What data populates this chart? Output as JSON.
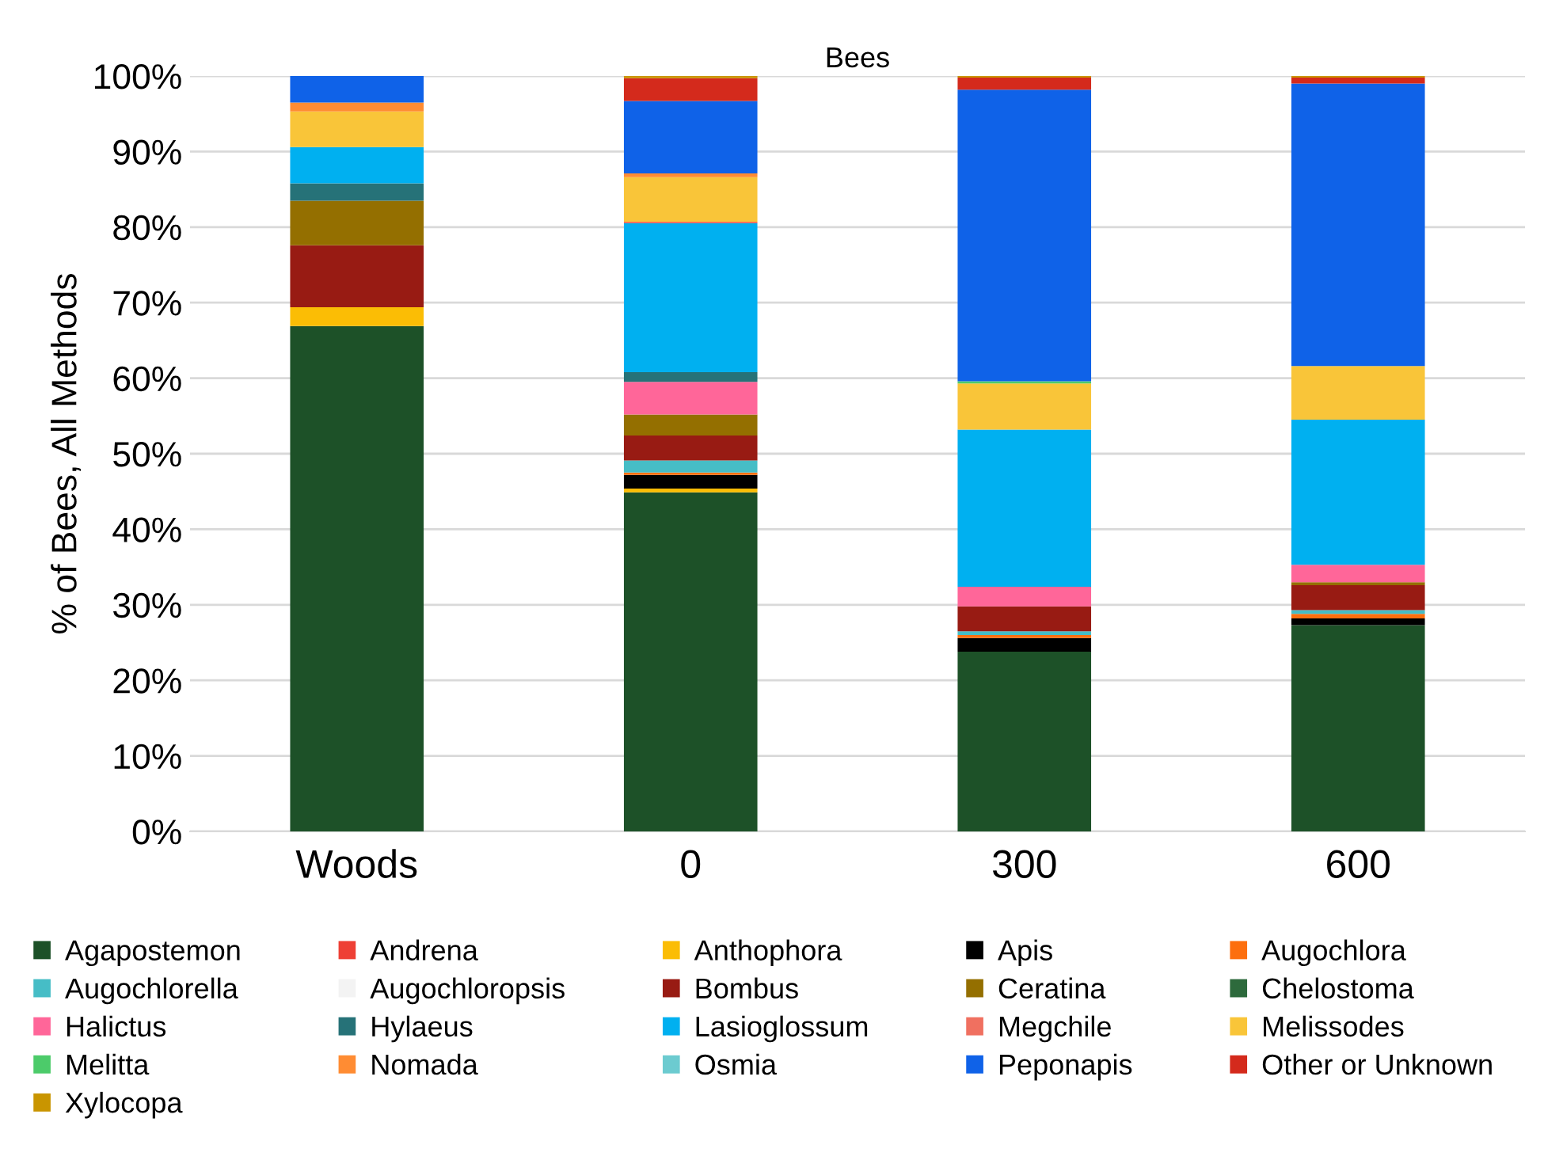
{
  "chart_data": {
    "type": "bar",
    "stacked": true,
    "title": "Bees",
    "ylabel": "% of Bees, All Methods",
    "categories": [
      "Woods",
      "0",
      "300",
      "600"
    ],
    "ylim": [
      0,
      100
    ],
    "yticks": [
      {
        "value": 0,
        "label": "0%"
      },
      {
        "value": 10,
        "label": "10%"
      },
      {
        "value": 20,
        "label": "20%"
      },
      {
        "value": 30,
        "label": "30%"
      },
      {
        "value": 40,
        "label": "40%"
      },
      {
        "value": 50,
        "label": "50%"
      },
      {
        "value": 60,
        "label": "60%"
      },
      {
        "value": 70,
        "label": "70%"
      },
      {
        "value": 80,
        "label": "80%"
      },
      {
        "value": 90,
        "label": "90%"
      },
      {
        "value": 100,
        "label": "100%"
      }
    ],
    "grid": "y",
    "legend": "bottom",
    "series": [
      {
        "name": "Agapostemon",
        "color": "#1d5128",
        "values": [
          66.9,
          44.9,
          23.8,
          27.3
        ]
      },
      {
        "name": "Andrena",
        "color": "#ee4035",
        "values": [
          0,
          0,
          0,
          0
        ]
      },
      {
        "name": "Anthophora",
        "color": "#fbbd05",
        "values": [
          2.5,
          0.5,
          0,
          0
        ]
      },
      {
        "name": "Apis",
        "color": "#000000",
        "values": [
          0,
          1.8,
          1.8,
          0.9
        ]
      },
      {
        "name": "Augochlora",
        "color": "#fd6f0e",
        "values": [
          0,
          0.3,
          0.4,
          0.6
        ]
      },
      {
        "name": "Augochlorella",
        "color": "#46bdc6",
        "values": [
          0,
          1.6,
          0.5,
          0.5
        ]
      },
      {
        "name": "Augochloropsis",
        "color": "#f3f3f3",
        "values": [
          0,
          0,
          0,
          0
        ]
      },
      {
        "name": "Bombus",
        "color": "#981b13",
        "values": [
          8.2,
          3.3,
          3.3,
          3.3
        ]
      },
      {
        "name": "Ceratina",
        "color": "#946f00",
        "values": [
          5.9,
          2.8,
          0,
          0.4
        ]
      },
      {
        "name": "Chelostoma",
        "color": "#2d6a3c",
        "values": [
          0,
          0,
          0,
          0
        ]
      },
      {
        "name": "Halictus",
        "color": "#ff6699",
        "values": [
          0,
          4.3,
          2.6,
          2.3
        ]
      },
      {
        "name": "Hylaeus",
        "color": "#267278",
        "values": [
          2.3,
          1.3,
          0,
          0
        ]
      },
      {
        "name": "Lasioglossum",
        "color": "#00b0f0",
        "values": [
          4.8,
          19.7,
          20.8,
          19.2
        ]
      },
      {
        "name": "Megchile",
        "color": "#f07060",
        "values": [
          0,
          0.2,
          0,
          0
        ]
      },
      {
        "name": "Melissodes",
        "color": "#f9c539",
        "values": [
          4.7,
          5.9,
          6.1,
          7.1
        ]
      },
      {
        "name": "Melitta",
        "color": "#4ccb6a",
        "values": [
          0,
          0,
          0.3,
          0
        ]
      },
      {
        "name": "Nomada",
        "color": "#ff8c33",
        "values": [
          1.2,
          0.5,
          0,
          0
        ]
      },
      {
        "name": "Osmia",
        "color": "#6ccbd0",
        "values": [
          0,
          0,
          0,
          0
        ]
      },
      {
        "name": "Peponapis",
        "color": "#0f62e8",
        "values": [
          3.5,
          9.6,
          38.6,
          37.4
        ]
      },
      {
        "name": "Other or Unknown",
        "color": "#d42a1c",
        "values": [
          0,
          3.0,
          1.6,
          0.8
        ]
      },
      {
        "name": "Xylocopa",
        "color": "#c99500",
        "values": [
          0,
          0.3,
          0.2,
          0.2
        ]
      }
    ]
  }
}
